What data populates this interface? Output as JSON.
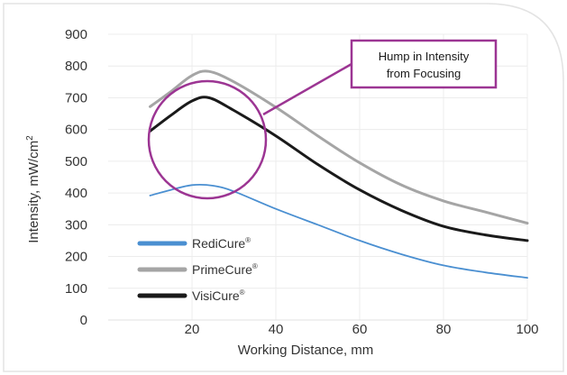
{
  "chart_data": {
    "type": "line",
    "xlabel": "Working Distance, mm",
    "ylabel": "Intensity, mW/cm",
    "ylabel_sup": "2",
    "xlim": [
      0,
      100
    ],
    "ylim": [
      0,
      900
    ],
    "xticks": [
      20,
      40,
      60,
      80,
      100
    ],
    "yticks": [
      0,
      100,
      200,
      300,
      400,
      500,
      600,
      700,
      800,
      900
    ],
    "x_zero_label": "0",
    "grid": true,
    "legend_position": "bottom-left",
    "series": [
      {
        "name": "RediCure",
        "mark": "®",
        "color": "#4a8fd1",
        "stroke": 1.8,
        "points": [
          [
            10,
            392
          ],
          [
            15,
            410
          ],
          [
            20,
            425
          ],
          [
            25,
            423
          ],
          [
            30,
            405
          ],
          [
            40,
            350
          ],
          [
            50,
            300
          ],
          [
            60,
            250
          ],
          [
            70,
            207
          ],
          [
            80,
            172
          ],
          [
            90,
            150
          ],
          [
            100,
            133
          ]
        ]
      },
      {
        "name": "PrimeCure",
        "mark": "®",
        "color": "#a5a5a5",
        "stroke": 3,
        "points": [
          [
            10,
            672
          ],
          [
            15,
            720
          ],
          [
            20,
            770
          ],
          [
            24,
            783
          ],
          [
            30,
            750
          ],
          [
            40,
            670
          ],
          [
            50,
            580
          ],
          [
            60,
            495
          ],
          [
            70,
            425
          ],
          [
            80,
            375
          ],
          [
            90,
            340
          ],
          [
            100,
            305
          ]
        ]
      },
      {
        "name": "VisiCure",
        "mark": "®",
        "color": "#1a1a1a",
        "stroke": 3,
        "points": [
          [
            10,
            595
          ],
          [
            15,
            645
          ],
          [
            20,
            690
          ],
          [
            24,
            700
          ],
          [
            30,
            660
          ],
          [
            40,
            580
          ],
          [
            50,
            490
          ],
          [
            60,
            410
          ],
          [
            70,
            345
          ],
          [
            80,
            295
          ],
          [
            90,
            268
          ],
          [
            100,
            250
          ]
        ]
      }
    ],
    "annotation": {
      "lines": [
        "Hump in Intensity",
        "from Focusing"
      ],
      "color": "#9c3593"
    }
  }
}
